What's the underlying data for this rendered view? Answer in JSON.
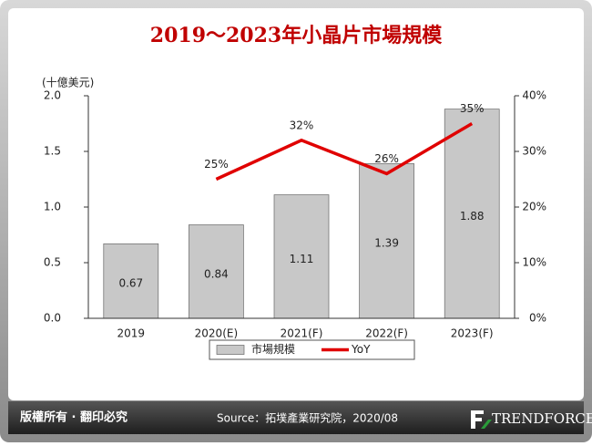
{
  "chart_data": {
    "type": "bar",
    "title": "2019～2023年小晶片市場規模",
    "y_label": "(十億美元)",
    "categories": [
      "2019",
      "2020(E)",
      "2021(F)",
      "2022(F)",
      "2023(F)"
    ],
    "series": [
      {
        "name": "市場規模",
        "color": "#c8c8c8",
        "values": [
          0.67,
          0.84,
          1.11,
          1.39,
          1.88
        ]
      },
      {
        "name": "YoY",
        "type": "line",
        "axis": "y2",
        "color": "#e00000",
        "values": [
          null,
          25,
          32,
          26,
          35
        ],
        "value_labels": [
          null,
          "25%",
          "32%",
          "26%",
          "35%"
        ]
      }
    ],
    "ylim": [
      0,
      2
    ],
    "yticks": [
      {
        "value": 0,
        "label": "0.0"
      },
      0.5,
      {
        "value": 1,
        "label": "1.0"
      },
      1.5,
      {
        "value": 2,
        "label": "2.0"
      }
    ],
    "y2lim": [
      0,
      40
    ],
    "y2ticks": [
      {
        "value": 0,
        "label": "0%"
      },
      {
        "value": 10,
        "label": "10%"
      },
      {
        "value": 20,
        "label": "20%"
      },
      {
        "value": 30,
        "label": "30%"
      },
      {
        "value": 40,
        "label": "40%"
      }
    ],
    "grid": false,
    "legend": "bottom"
  },
  "footer": {
    "copyright": "版權所有 · 翻印必究",
    "source": "Source：拓墣產業研究院，2020/08",
    "logo": "TRENDFORCE"
  }
}
